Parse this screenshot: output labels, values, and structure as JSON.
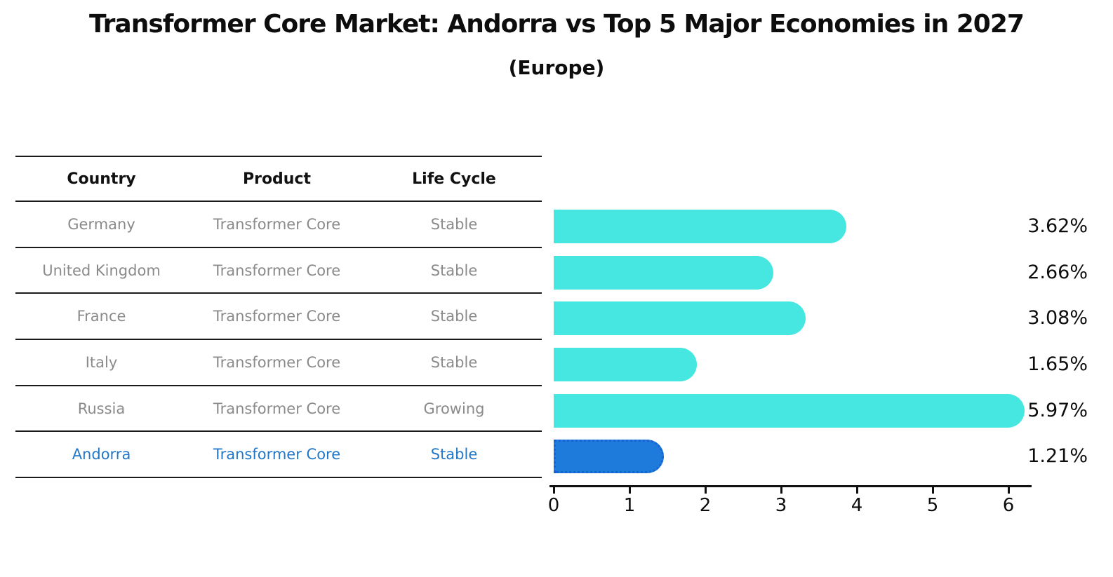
{
  "page": {
    "title": "Transformer Core Market: Andorra vs Top 5 Major Economies in 2027",
    "subtitle": "(Europe)"
  },
  "table": {
    "columns": [
      "Country",
      "Product",
      "Life Cycle"
    ],
    "rows": [
      {
        "country": "Germany",
        "product": "Transformer Core",
        "life_cycle": "Stable",
        "highlight": false
      },
      {
        "country": "United Kingdom",
        "product": "Transformer Core",
        "life_cycle": "Stable",
        "highlight": false
      },
      {
        "country": "France",
        "product": "Transformer Core",
        "life_cycle": "Stable",
        "highlight": false
      },
      {
        "country": "Italy",
        "product": "Transformer Core",
        "life_cycle": "Stable",
        "highlight": false
      },
      {
        "country": "Russia",
        "product": "Transformer Core",
        "life_cycle": "Growing",
        "highlight": false
      },
      {
        "country": "Andorra",
        "product": "Transformer Core",
        "life_cycle": "Stable",
        "highlight": true
      }
    ]
  },
  "chart_data": {
    "type": "bar",
    "orientation": "horizontal",
    "title": "Transformer Core Market: Andorra vs Top 5 Major Economies in 2027",
    "subtitle": "(Europe)",
    "categories": [
      "Germany",
      "United Kingdom",
      "France",
      "Italy",
      "Russia",
      "Andorra"
    ],
    "values": [
      3.62,
      2.66,
      3.08,
      1.65,
      5.97,
      1.21
    ],
    "value_labels": [
      "3.62%",
      "2.66%",
      "3.08%",
      "1.65%",
      "5.97%",
      "1.21%"
    ],
    "x_ticks": [
      "0",
      "1",
      "2",
      "3",
      "4",
      "5",
      "6"
    ],
    "xlim": [
      0,
      6.3
    ],
    "grid": false,
    "legend": false,
    "highlighted_category": "Andorra",
    "highlighted_value": 1.21
  },
  "colors": {
    "bar_cyan": "#46E7E1",
    "bar_blue": "#1E7BDC",
    "bar_blue_border": "#1663D2",
    "row_text_gray": "#8a8a8a",
    "highlight_text_blue": "#2377C8",
    "axis_black": "#111111"
  }
}
